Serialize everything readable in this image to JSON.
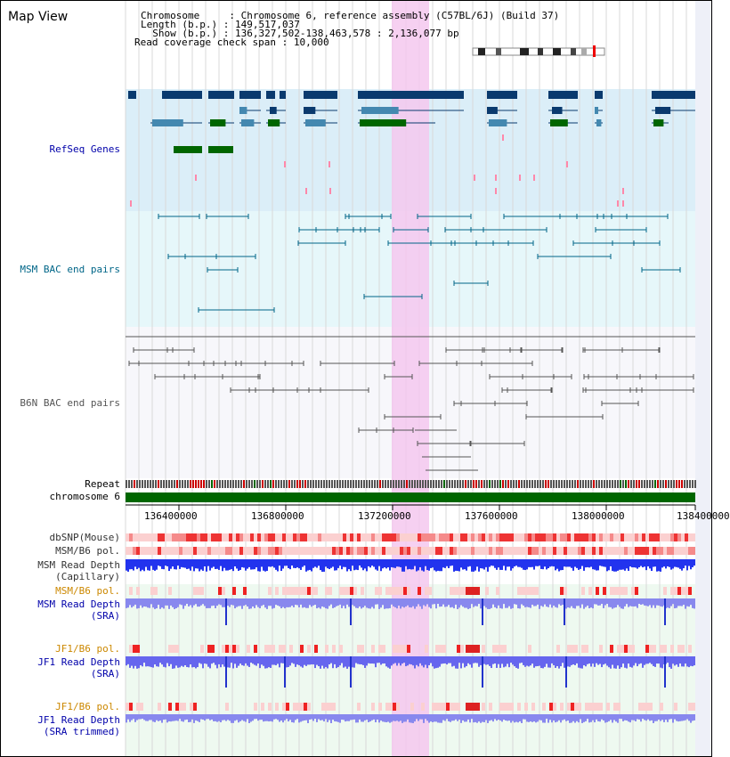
{
  "title": "Map View",
  "header": {
    "chromosome_key": "Chromosome",
    "chromosome_val": "Chromosome 6, reference assembly (C57BL/6J) (Build 37)",
    "length_key": "Length (b.p.)",
    "length_val": "149,517,037",
    "show_key": "Show (b.p.)",
    "show_val": "136,327,502-138,463,578 : 2,136,077 bp",
    "coverage_key": "Read coverage check span",
    "coverage_val": "10,000"
  },
  "tracks": {
    "refseq": "RefSeq Genes",
    "msm_bac": "MSM BAC end pairs",
    "b6n_bac": "B6N BAC end pairs",
    "repeat": "Repeat",
    "chromosome": "chromosome 6",
    "dbsnp": "dbSNP(Mouse)",
    "msm_b6_pol": "MSM/B6 pol.",
    "msm_depth_cap_1": "MSM Read Depth",
    "msm_depth_cap_2": "(Capillary)",
    "msm_b6_pol_sra": "MSM/B6 pol.",
    "msm_depth_sra_1": "MSM Read Depth",
    "msm_depth_sra_2": "(SRA)",
    "jf1_b6_pol": "JF1/B6 pol.",
    "jf1_depth_1": "JF1 Read Depth",
    "jf1_depth_2": "(SRA)",
    "jf1_b6_pol_t": "JF1/B6 pol.",
    "jf1_depth_t_1": "JF1 Read Depth",
    "jf1_depth_t_2": "(SRA trimmed)"
  },
  "axis": {
    "ticks": [
      "136400000",
      "136800000",
      "137200000",
      "137600000",
      "138000000",
      "138400000"
    ]
  },
  "colors": {
    "refseq_label": "#0000aa",
    "msm_label": "#006688",
    "b6n_label": "#555555",
    "pol_label": "#cc8800",
    "depth_label": "#0000aa",
    "highlight": "#f4c8ee",
    "gene_dark": "#0a3a6e",
    "gene_mid": "#4488b0",
    "gene_green": "#006600",
    "chrom_bar": "#006600"
  }
}
